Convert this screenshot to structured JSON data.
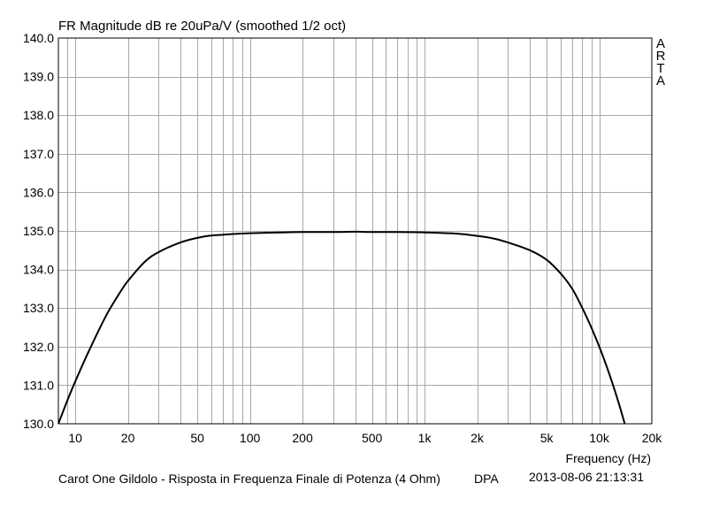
{
  "chart_data": {
    "type": "line",
    "title": "FR Magnitude dB re 20uPa/V (smoothed 1/2 oct)",
    "xlabel": "Frequency (Hz)",
    "ylabel": "",
    "xscale": "log",
    "xlim": [
      8,
      20000
    ],
    "ylim": [
      130.0,
      140.0
    ],
    "grid": true,
    "y_ticks": [
      "140.0",
      "139.0",
      "138.0",
      "137.0",
      "136.0",
      "135.0",
      "134.0",
      "133.0",
      "132.0",
      "131.0",
      "130.0"
    ],
    "x_ticks": [
      {
        "value": 10,
        "label": "10"
      },
      {
        "value": 20,
        "label": "20"
      },
      {
        "value": 50,
        "label": "50"
      },
      {
        "value": 100,
        "label": "100"
      },
      {
        "value": 200,
        "label": "200"
      },
      {
        "value": 500,
        "label": "500"
      },
      {
        "value": 1000,
        "label": "1k"
      },
      {
        "value": 2000,
        "label": "2k"
      },
      {
        "value": 5000,
        "label": "5k"
      },
      {
        "value": 10000,
        "label": "10k"
      },
      {
        "value": 20000,
        "label": "20k"
      }
    ],
    "series": [
      {
        "color": "#000000",
        "x": [
          8,
          9,
          10,
          12,
          15,
          18,
          20,
          25,
          30,
          40,
          50,
          60,
          70,
          80,
          100,
          150,
          200,
          300,
          400,
          500,
          700,
          1000,
          1500,
          2000,
          2500,
          3000,
          4000,
          5000,
          6000,
          7000,
          8000,
          9000,
          10000,
          11000,
          12000,
          13000,
          14000
        ],
        "y": [
          130.0,
          130.6,
          131.1,
          131.9,
          132.8,
          133.4,
          133.7,
          134.2,
          134.45,
          134.7,
          134.82,
          134.88,
          134.9,
          134.92,
          134.94,
          134.96,
          134.97,
          134.97,
          134.98,
          134.97,
          134.97,
          134.96,
          134.93,
          134.87,
          134.8,
          134.7,
          134.5,
          134.25,
          133.9,
          133.5,
          133.0,
          132.5,
          132.0,
          131.5,
          131.0,
          130.5,
          130.0
        ]
      }
    ]
  },
  "watermark_letters": [
    "A",
    "R",
    "T",
    "A"
  ],
  "caption": "Carot One Gildolo - Risposta in Frequenza Finale di Potenza (4 Ohm)",
  "device_label": "DPA",
  "timestamp": "2013-08-06  21:13:31"
}
